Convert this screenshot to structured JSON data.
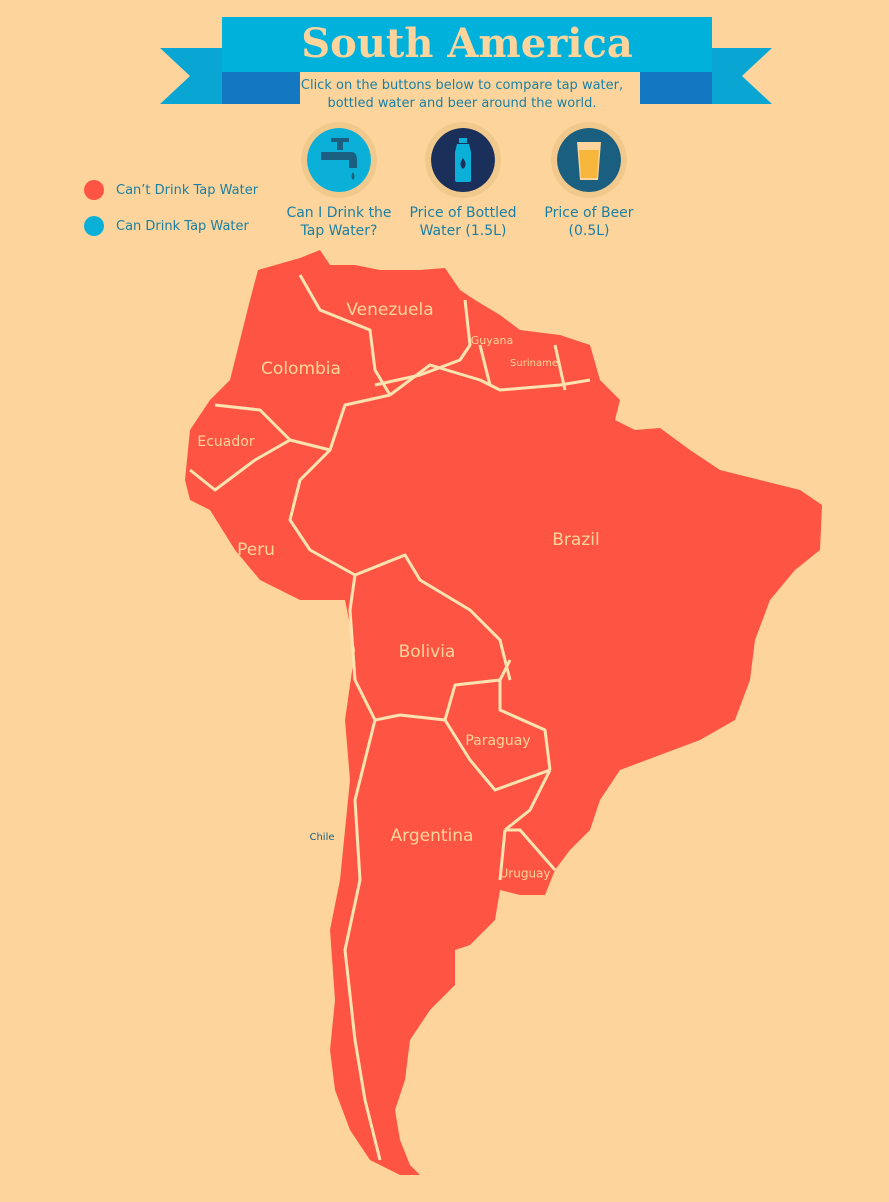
{
  "header": {
    "title": "South America",
    "subtitle": "Click on the buttons below to compare tap water, bottled water and beer around the world."
  },
  "legend": [
    "Can’t Drink Tap Water",
    "Can Drink Tap Water"
  ],
  "buttons": [
    "Can I Drink the Tap Water?",
    "Price of Bottled Water (1.5L)",
    "Price of Beer (0.5L)"
  ],
  "countries": [
    "Venezuela",
    "Guyana",
    "Suriname",
    "Colombia",
    "Ecuador",
    "Peru",
    "Brazil",
    "Bolivia",
    "Paraguay",
    "Argentina",
    "Chile",
    "Uruguay"
  ]
}
